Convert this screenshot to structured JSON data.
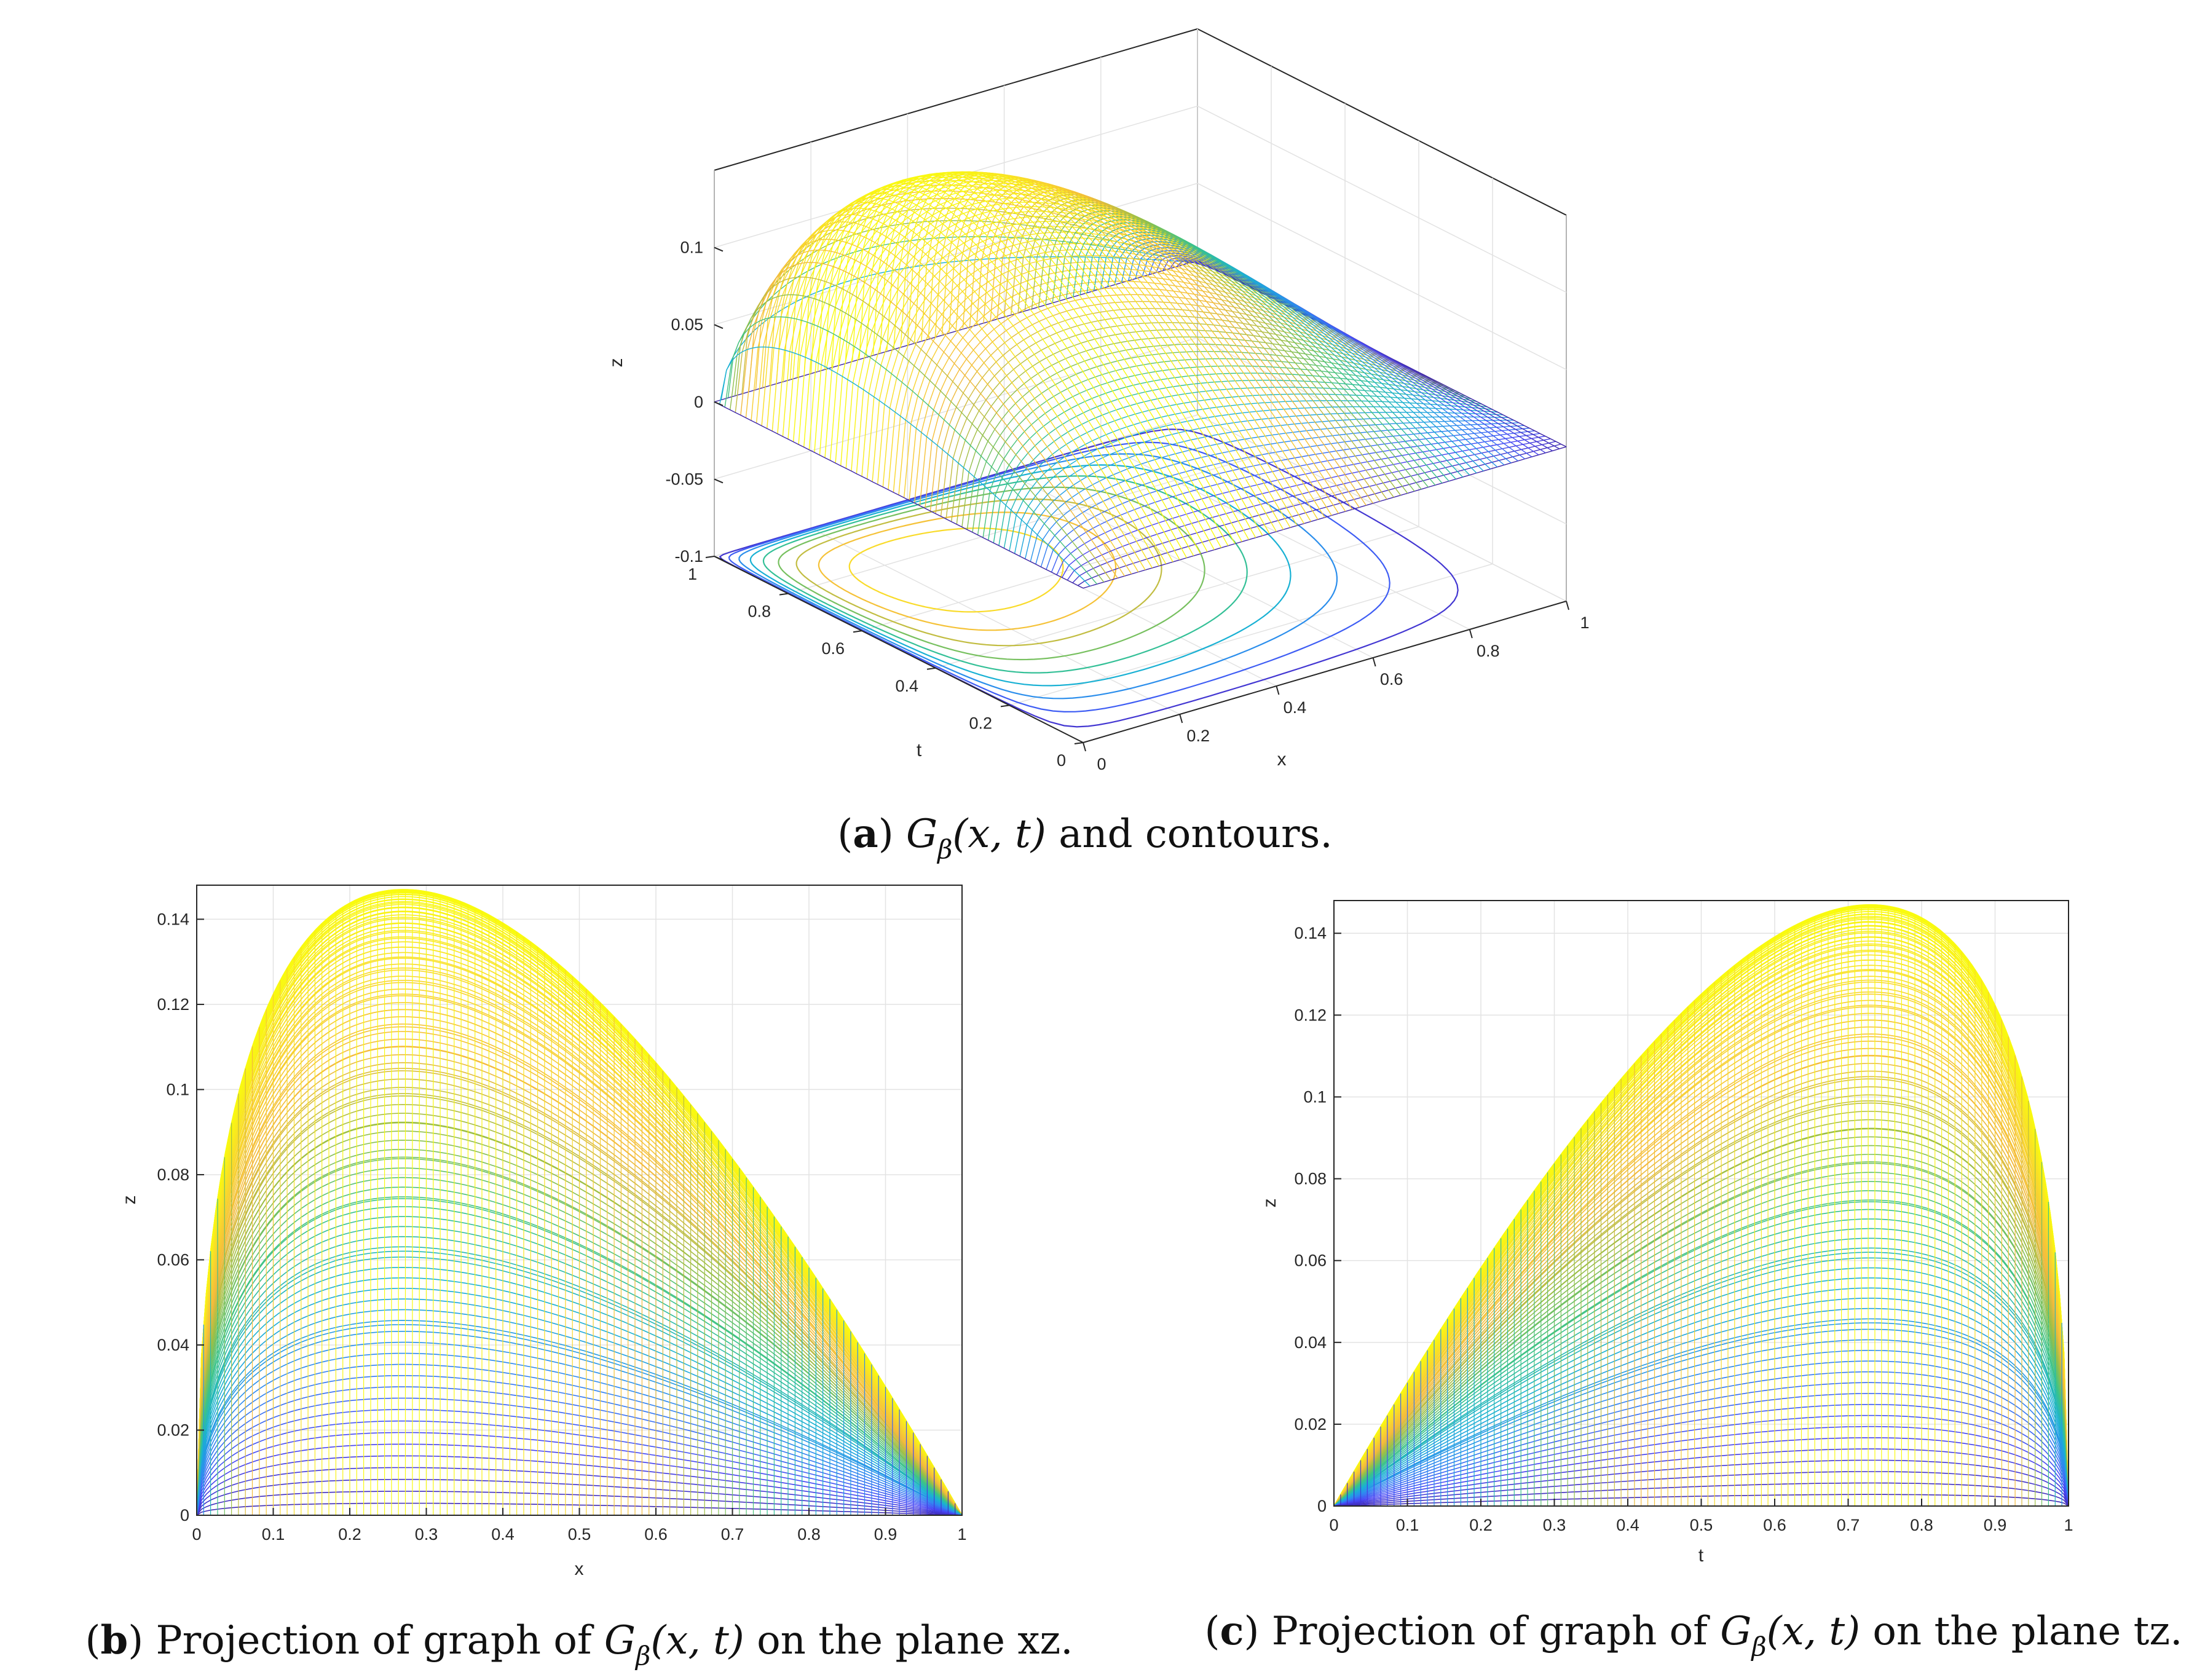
{
  "colormap": [
    "#3e26a8",
    "#4745f5",
    "#2f87f1",
    "#19b1d4",
    "#3ac389",
    "#9bbf46",
    "#f4ba3c",
    "#f9d82c",
    "#f9fb0e"
  ],
  "chart_data": [
    {
      "id": "a",
      "type": "surface",
      "xlabel": "x",
      "ylabel": "t",
      "zlabel": "z",
      "xlim": [
        0,
        1
      ],
      "ylim": [
        0,
        1
      ],
      "zlim": [
        -0.1,
        0.15
      ],
      "xticks": [
        "0",
        "0.2",
        "0.4",
        "0.6",
        "0.8",
        "1"
      ],
      "yticks": [
        "0",
        "0.2",
        "0.4",
        "0.6",
        "0.8",
        "1"
      ],
      "zticks": [
        "-0.1",
        "-0.05",
        "0",
        "0.05",
        "0.1"
      ],
      "zmax": 0.147,
      "peak_x": 0.27,
      "peak_t": 0.73,
      "contours": true
    },
    {
      "id": "b",
      "type": "line",
      "xlabel": "x",
      "ylabel": "z",
      "xlim": [
        0,
        1
      ],
      "ylim": [
        0,
        0.148
      ],
      "xticks": [
        "0",
        "0.1",
        "0.2",
        "0.3",
        "0.4",
        "0.5",
        "0.6",
        "0.7",
        "0.8",
        "0.9",
        "1"
      ],
      "yticks": [
        "0",
        "0.02",
        "0.04",
        "0.06",
        "0.08",
        "0.1",
        "0.12",
        "0.14"
      ],
      "grid": true,
      "peak_x": 0.27,
      "peak_z": 0.147
    },
    {
      "id": "c",
      "type": "line",
      "xlabel": "t",
      "ylabel": "z",
      "xlim": [
        0,
        1
      ],
      "ylim": [
        0,
        0.148
      ],
      "xticks": [
        "0",
        "0.1",
        "0.2",
        "0.3",
        "0.4",
        "0.5",
        "0.6",
        "0.7",
        "0.8",
        "0.9",
        "1"
      ],
      "yticks": [
        "0",
        "0.02",
        "0.04",
        "0.06",
        "0.08",
        "0.1",
        "0.12",
        "0.14"
      ],
      "grid": true,
      "peak_t": 0.73,
      "peak_z": 0.147
    }
  ],
  "captions": {
    "a": {
      "label": "a",
      "func": "G",
      "sub": "β",
      "args": "(x, t)",
      "text": " and contours."
    },
    "b": {
      "label": "b",
      "prefix": " Projection of graph of ",
      "func": "G",
      "sub": "β",
      "args": "(x, t)",
      "text": " on the plane xz."
    },
    "c": {
      "label": "c",
      "prefix": " Projection of graph of ",
      "func": "G",
      "sub": "β",
      "args": "(x, t)",
      "text": " on the plane tz."
    }
  }
}
